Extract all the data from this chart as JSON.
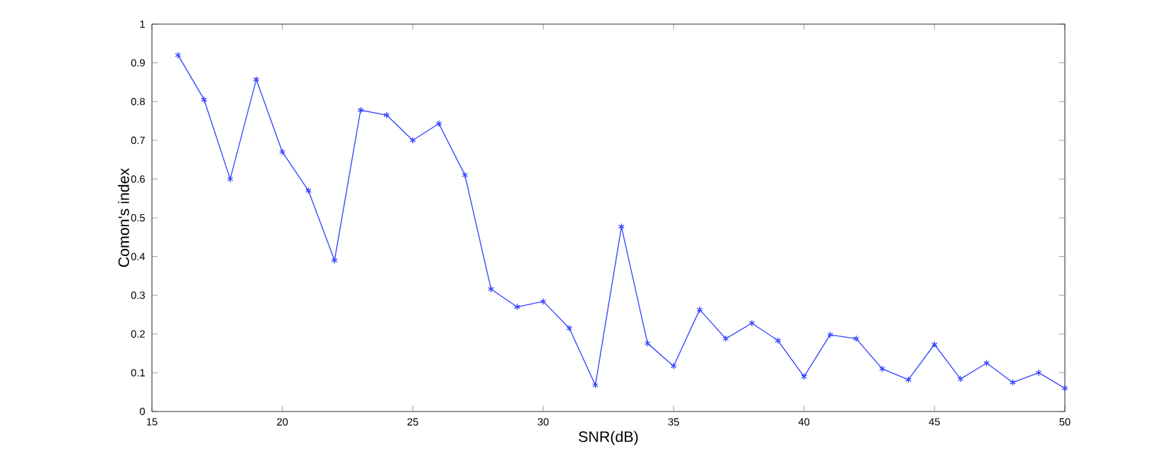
{
  "chart_data": {
    "type": "line",
    "xlabel": "SNR(dB)",
    "ylabel": "Comon's index",
    "x": [
      16,
      17,
      18,
      19,
      20,
      21,
      22,
      23,
      24,
      25,
      26,
      27,
      28,
      29,
      30,
      31,
      32,
      33,
      34,
      35,
      36,
      37,
      38,
      39,
      40,
      41,
      42,
      43,
      44,
      45,
      46,
      47,
      48,
      49,
      50
    ],
    "series": [
      {
        "color": "#3344ff",
        "values": [
          0.92,
          0.805,
          0.6,
          0.857,
          0.67,
          0.57,
          0.39,
          0.778,
          0.765,
          0.7,
          0.743,
          0.61,
          0.316,
          0.27,
          0.284,
          0.215,
          0.068,
          0.477,
          0.176,
          0.117,
          0.263,
          0.188,
          0.228,
          0.183,
          0.09,
          0.198,
          0.188,
          0.11,
          0.082,
          0.173,
          0.084,
          0.125,
          0.075,
          0.1,
          0.06
        ]
      }
    ],
    "xlim": [
      15,
      50
    ],
    "ylim": [
      0,
      1
    ],
    "xticks": [
      15,
      20,
      25,
      30,
      35,
      40,
      45,
      50
    ],
    "yticks": [
      0,
      0.1,
      0.2,
      0.3,
      0.4,
      0.5,
      0.6,
      0.7,
      0.8,
      0.9,
      1
    ],
    "marker": "cross",
    "line_style": "solid"
  }
}
